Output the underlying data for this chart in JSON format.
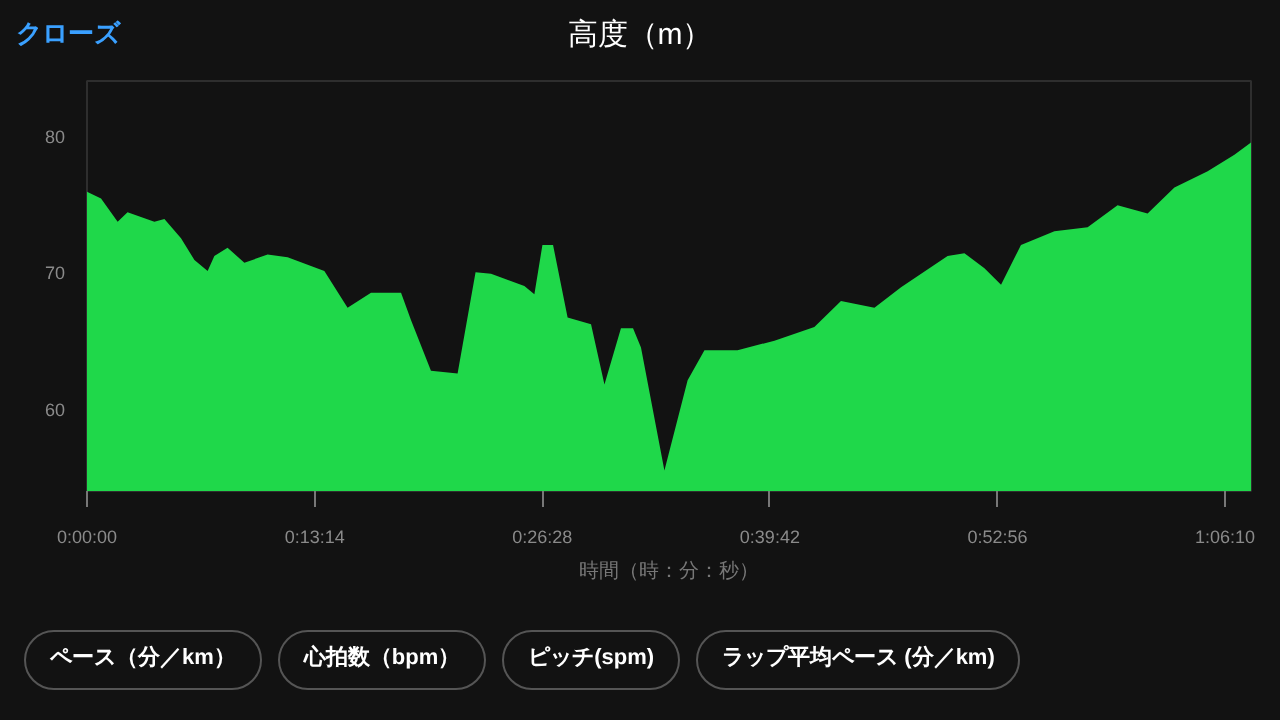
{
  "chart_data": {
    "type": "area",
    "title": "高度（m）",
    "xlabel": "時間（時：分：秒）",
    "color": "#1fd84a",
    "x": [
      0,
      0.0136,
      0.0297,
      0.0393,
      0.0653,
      0.075,
      0.0911,
      0.1041,
      0.1169,
      0.1234,
      0.1362,
      0.1525,
      0.175,
      0.1944,
      0.23,
      0.2525,
      0.2752,
      0.3043,
      0.314,
      0.3333,
      0.3591,
      0.3765,
      0.3915,
      0.4238,
      0.4335,
      0.4413,
      0.4516,
      0.4657,
      0.4884,
      0.5014,
      0.5174,
      0.5291,
      0.5368,
      0.5595,
      0.582,
      0.5983,
      0.6304,
      0.6661,
      0.7048,
      0.7306,
      0.763,
      0.7888,
      0.8339,
      0.8502,
      0.8696,
      0.8857,
      0.905,
      0.9374,
      0.9696,
      0.9986,
      1.0277,
      1.0537,
      1.0859,
      1.1118,
      1.1279
    ],
    "values": [
      75.9,
      75.4,
      73.7,
      74.4,
      73.7,
      73.9,
      72.5,
      70.9,
      70.1,
      71.2,
      71.8,
      70.7,
      71.3,
      71.1,
      70.1,
      67.4,
      68.5,
      68.5,
      66.5,
      62.8,
      62.6,
      70.0,
      69.9,
      69.0,
      68.4,
      72.0,
      72.0,
      66.7,
      66.2,
      61.8,
      65.9,
      65.9,
      64.5,
      55.5,
      62.1,
      64.3,
      64.3,
      65.0,
      66.0,
      67.9,
      67.4,
      68.9,
      71.2,
      71.4,
      70.3,
      69.1,
      72.0,
      73.0,
      73.3,
      74.9,
      74.3,
      76.2,
      77.4,
      78.6,
      79.5
    ],
    "xlim": [
      0,
      1.1279
    ],
    "ylim": [
      54,
      84
    ],
    "yticks": [
      60,
      70,
      80
    ],
    "xticks": [
      {
        "value": 0,
        "label": "0:00:00"
      },
      {
        "value": 0.2206,
        "label": "0:13:14"
      },
      {
        "value": 0.4411,
        "label": "0:26:28"
      },
      {
        "value": 0.6617,
        "label": "0:39:42"
      },
      {
        "value": 0.8822,
        "label": "0:52:56"
      },
      {
        "value": 1.1028,
        "label": "1:06:10"
      }
    ],
    "annotations": [
      "クローズ",
      "ペース（分／km）",
      "心拍数（bpm）",
      "ピッチ(spm)",
      "ラップ平均ペース (分／km)"
    ]
  }
}
